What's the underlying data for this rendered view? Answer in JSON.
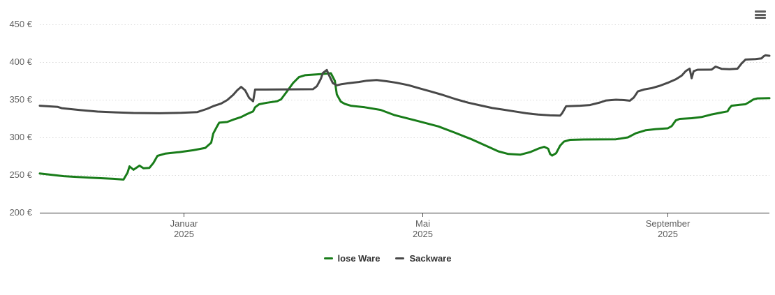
{
  "controls": {
    "context_menu_icon": "hamburger-menu-icon"
  },
  "chart_data": {
    "type": "line",
    "title": "",
    "grid": "dotted-horizontal",
    "legend_position": "bottom-center",
    "x_axis": {
      "type": "datetime",
      "range": [
        "2024-10-21",
        "2025-10-22"
      ],
      "ticks": [
        {
          "date": "2025-01-01",
          "month": "Januar",
          "year": "2025"
        },
        {
          "date": "2025-05-01",
          "month": "Mai",
          "year": "2025"
        },
        {
          "date": "2025-09-01",
          "month": "September",
          "year": "2025"
        }
      ]
    },
    "y_axis": {
      "unit": "€",
      "range": [
        200,
        450
      ],
      "ticks": [
        {
          "value": 450,
          "label": "450 €"
        },
        {
          "value": 400,
          "label": "400 €"
        },
        {
          "value": 350,
          "label": "350 €"
        },
        {
          "value": 300,
          "label": "300 €"
        },
        {
          "value": 250,
          "label": "250 €"
        },
        {
          "value": 200,
          "label": "200 €"
        }
      ]
    },
    "series": [
      {
        "id": "lose-ware",
        "name": "lose Ware",
        "color": "#187c19",
        "points": [
          [
            "2024-10-21",
            252
          ],
          [
            "2024-11-02",
            248.5
          ],
          [
            "2024-11-15",
            246.5
          ],
          [
            "2024-11-27",
            245
          ],
          [
            "2024-12-02",
            244
          ],
          [
            "2024-12-04",
            253
          ],
          [
            "2024-12-05",
            261.5
          ],
          [
            "2024-12-07",
            257
          ],
          [
            "2024-12-10",
            262.5
          ],
          [
            "2024-12-12",
            259
          ],
          [
            "2024-12-15",
            259.5
          ],
          [
            "2024-12-17",
            266
          ],
          [
            "2024-12-19",
            275.5
          ],
          [
            "2024-12-23",
            278.5
          ],
          [
            "2024-12-30",
            280.5
          ],
          [
            "2025-01-06",
            283
          ],
          [
            "2025-01-12",
            286
          ],
          [
            "2025-01-15",
            293
          ],
          [
            "2025-01-16",
            305
          ],
          [
            "2025-01-18",
            315
          ],
          [
            "2025-01-19",
            319.5
          ],
          [
            "2025-01-23",
            320.5
          ],
          [
            "2025-01-26",
            323.5
          ],
          [
            "2025-01-30",
            327
          ],
          [
            "2025-02-02",
            331
          ],
          [
            "2025-02-05",
            334.5
          ],
          [
            "2025-02-06",
            340
          ],
          [
            "2025-02-08",
            344
          ],
          [
            "2025-02-12",
            346
          ],
          [
            "2025-02-17",
            348
          ],
          [
            "2025-02-19",
            350.5
          ],
          [
            "2025-02-22",
            361
          ],
          [
            "2025-02-25",
            372
          ],
          [
            "2025-02-28",
            380
          ],
          [
            "2025-03-03",
            382.5
          ],
          [
            "2025-03-11",
            384
          ],
          [
            "2025-03-16",
            385.2
          ],
          [
            "2025-03-18",
            375
          ],
          [
            "2025-03-19",
            357
          ],
          [
            "2025-03-21",
            347.5
          ],
          [
            "2025-03-23",
            344.5
          ],
          [
            "2025-03-26",
            342
          ],
          [
            "2025-04-02",
            340
          ],
          [
            "2025-04-10",
            336.5
          ],
          [
            "2025-04-17",
            329.5
          ],
          [
            "2025-04-29",
            321.5
          ],
          [
            "2025-05-09",
            314.5
          ],
          [
            "2025-05-17",
            306.5
          ],
          [
            "2025-05-26",
            297
          ],
          [
            "2025-06-03",
            287.5
          ],
          [
            "2025-06-08",
            281.5
          ],
          [
            "2025-06-13",
            278
          ],
          [
            "2025-06-19",
            277
          ],
          [
            "2025-06-24",
            280.5
          ],
          [
            "2025-06-28",
            285
          ],
          [
            "2025-07-01",
            287.5
          ],
          [
            "2025-07-03",
            285
          ],
          [
            "2025-07-04",
            278
          ],
          [
            "2025-07-05",
            275.8
          ],
          [
            "2025-07-07",
            279
          ],
          [
            "2025-07-09",
            289
          ],
          [
            "2025-07-11",
            294.5
          ],
          [
            "2025-07-14",
            296.8
          ],
          [
            "2025-07-21",
            297.2
          ],
          [
            "2025-08-06",
            297.5
          ],
          [
            "2025-08-12",
            300
          ],
          [
            "2025-08-16",
            305.5
          ],
          [
            "2025-08-21",
            309.5
          ],
          [
            "2025-08-26",
            311
          ],
          [
            "2025-09-01",
            312
          ],
          [
            "2025-09-03",
            315
          ],
          [
            "2025-09-05",
            322.5
          ],
          [
            "2025-09-07",
            324.5
          ],
          [
            "2025-09-13",
            325.5
          ],
          [
            "2025-09-18",
            327
          ],
          [
            "2025-09-23",
            330.5
          ],
          [
            "2025-09-27",
            332.5
          ],
          [
            "2025-10-01",
            334.5
          ],
          [
            "2025-10-02",
            339
          ],
          [
            "2025-10-03",
            342
          ],
          [
            "2025-10-07",
            343.2
          ],
          [
            "2025-10-10",
            344
          ],
          [
            "2025-10-12",
            347
          ],
          [
            "2025-10-14",
            350.5
          ],
          [
            "2025-10-16",
            351.8
          ],
          [
            "2025-10-22",
            352
          ]
        ]
      },
      {
        "id": "sackware",
        "name": "Sackware",
        "color": "#484848",
        "points": [
          [
            "2024-10-21",
            342
          ],
          [
            "2024-10-30",
            340.5
          ],
          [
            "2024-11-01",
            338.8
          ],
          [
            "2024-11-10",
            336.3
          ],
          [
            "2024-11-19",
            334.3
          ],
          [
            "2024-11-28",
            333.2
          ],
          [
            "2024-12-07",
            332.4
          ],
          [
            "2024-12-20",
            332
          ],
          [
            "2024-12-31",
            332.6
          ],
          [
            "2025-01-08",
            333.6
          ],
          [
            "2025-01-13",
            338
          ],
          [
            "2025-01-16",
            341.5
          ],
          [
            "2025-01-20",
            345
          ],
          [
            "2025-01-23",
            349.5
          ],
          [
            "2025-01-26",
            356.5
          ],
          [
            "2025-01-28",
            362.5
          ],
          [
            "2025-01-30",
            367
          ],
          [
            "2025-02-01",
            362.5
          ],
          [
            "2025-02-03",
            352.5
          ],
          [
            "2025-02-05",
            348
          ],
          [
            "2025-02-06",
            363.5
          ],
          [
            "2025-02-18",
            363.6
          ],
          [
            "2025-03-07",
            364
          ],
          [
            "2025-03-09",
            368
          ],
          [
            "2025-03-11",
            378
          ],
          [
            "2025-03-12",
            385.5
          ],
          [
            "2025-03-14",
            389.5
          ],
          [
            "2025-03-15",
            383
          ],
          [
            "2025-03-17",
            372
          ],
          [
            "2025-03-19",
            369.2
          ],
          [
            "2025-03-21",
            370.5
          ],
          [
            "2025-03-25",
            372
          ],
          [
            "2025-03-30",
            373.5
          ],
          [
            "2025-04-03",
            375.3
          ],
          [
            "2025-04-08",
            376.2
          ],
          [
            "2025-04-13",
            374.5
          ],
          [
            "2025-04-18",
            372.5
          ],
          [
            "2025-04-24",
            369.3
          ],
          [
            "2025-04-29",
            365.5
          ],
          [
            "2025-05-05",
            361
          ],
          [
            "2025-05-11",
            356.5
          ],
          [
            "2025-05-18",
            350.5
          ],
          [
            "2025-05-24",
            346
          ],
          [
            "2025-05-30",
            342.5
          ],
          [
            "2025-06-05",
            339
          ],
          [
            "2025-06-10",
            337
          ],
          [
            "2025-06-16",
            334.5
          ],
          [
            "2025-06-22",
            332
          ],
          [
            "2025-06-28",
            330.3
          ],
          [
            "2025-07-04",
            329.3
          ],
          [
            "2025-07-09",
            329
          ],
          [
            "2025-07-10",
            332
          ],
          [
            "2025-07-12",
            341.3
          ],
          [
            "2025-07-19",
            342
          ],
          [
            "2025-07-24",
            343
          ],
          [
            "2025-07-29",
            346.3
          ],
          [
            "2025-08-01",
            349
          ],
          [
            "2025-08-06",
            350
          ],
          [
            "2025-08-10",
            349.5
          ],
          [
            "2025-08-13",
            348.7
          ],
          [
            "2025-08-15",
            353
          ],
          [
            "2025-08-17",
            361
          ],
          [
            "2025-08-20",
            363.5
          ],
          [
            "2025-08-24",
            365.5
          ],
          [
            "2025-08-28",
            368.5
          ],
          [
            "2025-09-01",
            372.5
          ],
          [
            "2025-09-05",
            377
          ],
          [
            "2025-09-08",
            382
          ],
          [
            "2025-09-10",
            388
          ],
          [
            "2025-09-12",
            391.3
          ],
          [
            "2025-09-13",
            378.5
          ],
          [
            "2025-09-14",
            388
          ],
          [
            "2025-09-16",
            389.8
          ],
          [
            "2025-09-23",
            390
          ],
          [
            "2025-09-25",
            394
          ],
          [
            "2025-09-28",
            391
          ],
          [
            "2025-10-02",
            390.5
          ],
          [
            "2025-10-06",
            391.2
          ],
          [
            "2025-10-08",
            398
          ],
          [
            "2025-10-10",
            403.3
          ],
          [
            "2025-10-15",
            404
          ],
          [
            "2025-10-18",
            404.8
          ],
          [
            "2025-10-19",
            407.5
          ],
          [
            "2025-10-20",
            409
          ],
          [
            "2025-10-22",
            408.3
          ]
        ]
      }
    ]
  }
}
